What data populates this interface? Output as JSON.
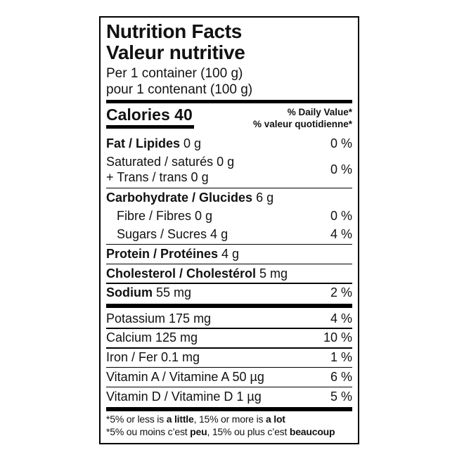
{
  "colors": {
    "text": "#111111",
    "background": "#ffffff",
    "rule": "#000000"
  },
  "header": {
    "title_en": "Nutrition Facts",
    "title_fr": "Valeur nutritive",
    "serving_en": "Per 1 container (100 g)",
    "serving_fr": "pour 1 contenant (100 g)"
  },
  "calories": {
    "label": "Calories 40",
    "daily_value_en": "% Daily Value*",
    "daily_value_fr": "% valeur quotidienne*"
  },
  "rows": {
    "fat": {
      "bold": "Fat / Lipides",
      "rest": " 0 g",
      "pct": "0 %"
    },
    "sat_trans": {
      "line1": "Saturated / saturés 0 g",
      "line2": "+ Trans / trans 0 g",
      "pct": "0 %"
    },
    "carbohydrate": {
      "bold": "Carbohydrate / Glucides",
      "rest": " 6 g"
    },
    "fibre": {
      "text": "Fibre / Fibres 0 g",
      "pct": "0 %"
    },
    "sugars": {
      "text": "Sugars / Sucres 4 g",
      "pct": "4 %"
    },
    "protein": {
      "bold": "Protein / Protéines",
      "rest": " 4 g"
    },
    "cholesterol": {
      "bold": "Cholesterol / Cholestérol",
      "rest": " 5 mg"
    },
    "sodium": {
      "bold": "Sodium",
      "rest": " 55 mg",
      "pct": "2 %"
    },
    "potassium": {
      "text": "Potassium 175 mg",
      "pct": "4 %"
    },
    "calcium": {
      "text": "Calcium 125 mg",
      "pct": "10 %"
    },
    "iron": {
      "text": "Iron / Fer 0.1 mg",
      "pct": "1 %"
    },
    "vitamin_a": {
      "text": "Vitamin A / Vitamine A 50 µg",
      "pct": "6 %"
    },
    "vitamin_d": {
      "text": "Vitamin D / Vitamine D 1 µg",
      "pct": "5 %"
    }
  },
  "footnotes": {
    "en": {
      "pre": "*5% or less is ",
      "bold1": "a little",
      "mid": ", 15% or more is ",
      "bold2": "a lot"
    },
    "fr": {
      "pre": "*5% ou moins c’est ",
      "bold1": "peu",
      "mid": ", 15% ou plus c’est ",
      "bold2": "beaucoup"
    }
  }
}
